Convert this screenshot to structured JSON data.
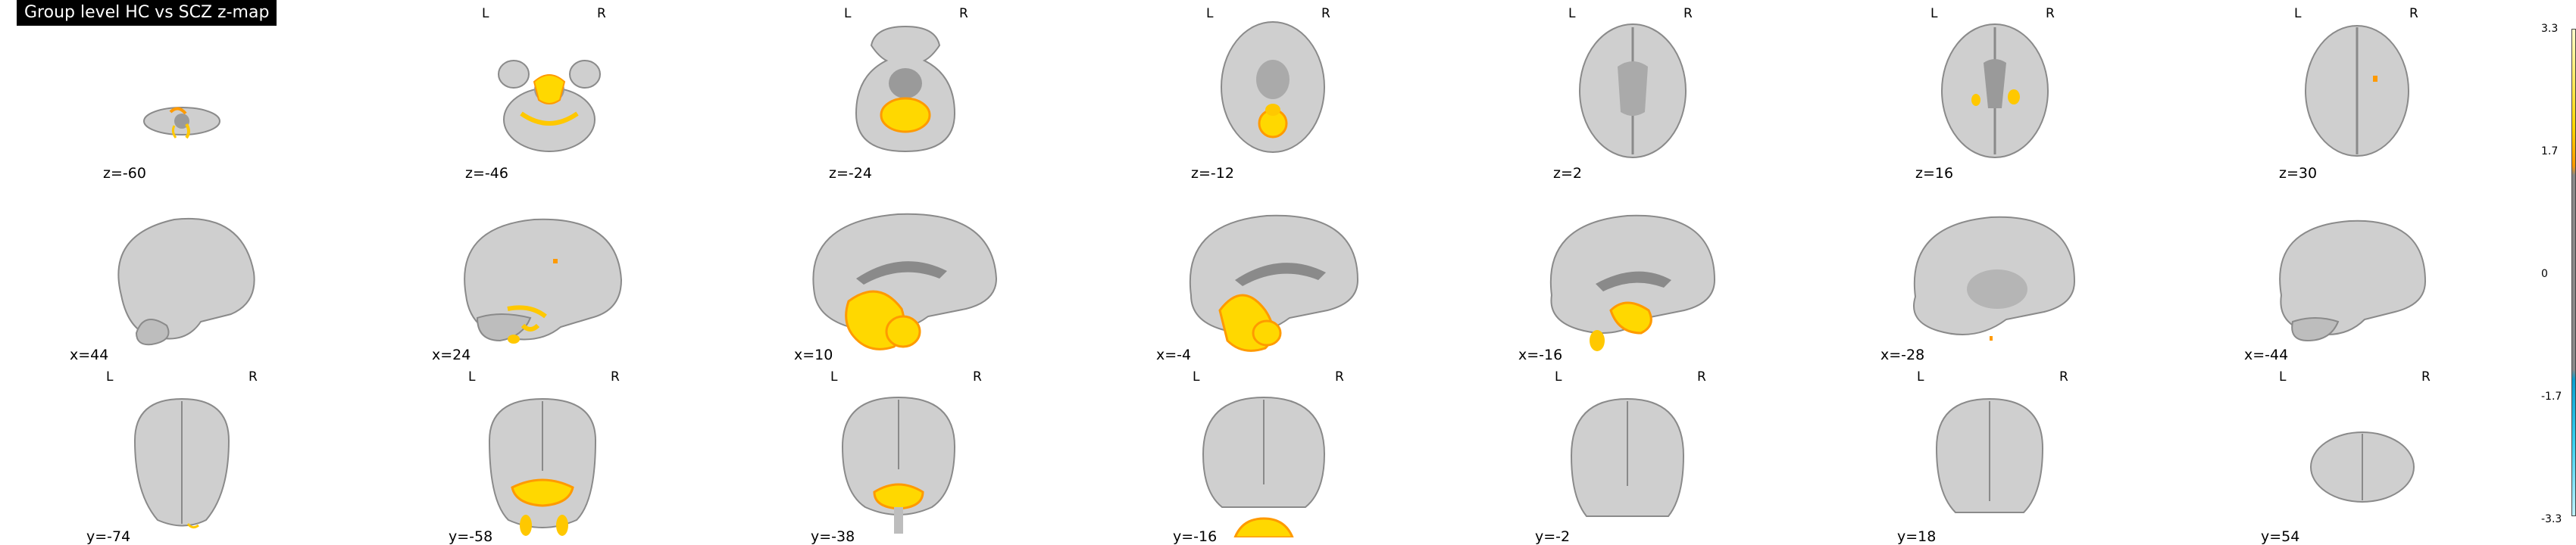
{
  "title": "Group level HC vs SCZ z-map",
  "orientation": {
    "left": "L",
    "right": "R"
  },
  "rows": {
    "axial": [
      "z=-60",
      "z=-46",
      "z=-24",
      "z=-12",
      "z=2",
      "z=16",
      "z=30"
    ],
    "sagittal": [
      "x=44",
      "x=24",
      "x=10",
      "x=-4",
      "x=-16",
      "x=-28",
      "x=-44"
    ],
    "coronal": [
      "y=-74",
      "y=-58",
      "y=-38",
      "y=-16",
      "y=-2",
      "y=18",
      "y=54"
    ]
  },
  "colorbar": {
    "ticks": [
      "3.3",
      "1.7",
      "0",
      "-1.7",
      "-3.3"
    ],
    "colors": {
      "positive": "#ffd800",
      "mid": "#8a8a8a",
      "negative": "#38d2f0"
    }
  },
  "colors": {
    "activation": "#ffc800",
    "activation_edge": "#ff9a00",
    "tissue": "#c9c9c9",
    "tissue_dark": "#6f6f6f"
  }
}
